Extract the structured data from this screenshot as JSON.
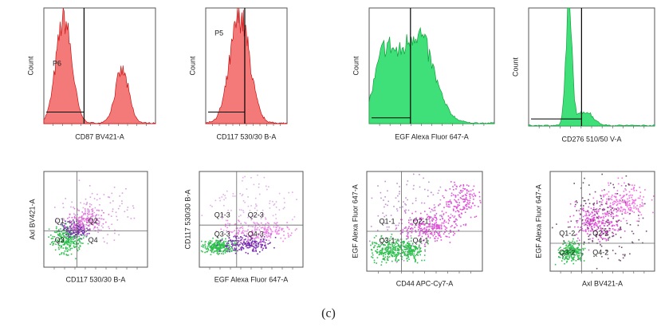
{
  "histograms": [
    {
      "y_label": "Count",
      "x_label": "CD87 BV421-A",
      "gate": "P6"
    },
    {
      "y_label": "Count",
      "x_label": "CD117 530/30 B-A",
      "gate": "P5"
    },
    {
      "y_label": "Count",
      "x_label": "EGF Alexa Fluor 647-A"
    },
    {
      "y_label": "Count",
      "x_label": "CD276 510/50 V-A"
    }
  ],
  "dot_plots": [
    {
      "y_label": "Axl BV421-A",
      "x_label": "CD117 530/30 B-A",
      "quadrants": [
        "Q1",
        "Q2",
        "Q3",
        "Q4"
      ]
    },
    {
      "y_label": "CD117 530/30 B-A",
      "x_label": "EGF Alexa Fluor 647-A",
      "quadrants": [
        "Q1-3",
        "Q2-3",
        "Q3-3",
        "Q4-3"
      ]
    },
    {
      "y_label": "EGF Alexa Fluor 647-A",
      "x_label": "CD44 APC-Cy7-A",
      "quadrants": [
        "Q1-1",
        "Q2-1",
        "Q3-1",
        "Q4-1"
      ]
    },
    {
      "y_label": "EGF Alexa Fluor 647-A",
      "x_label": "Axl BV421-A",
      "quadrants": [
        "Q1-2",
        "Q2-2",
        "Q3-2",
        "Q4-2"
      ]
    }
  ],
  "caption": "(c)"
}
